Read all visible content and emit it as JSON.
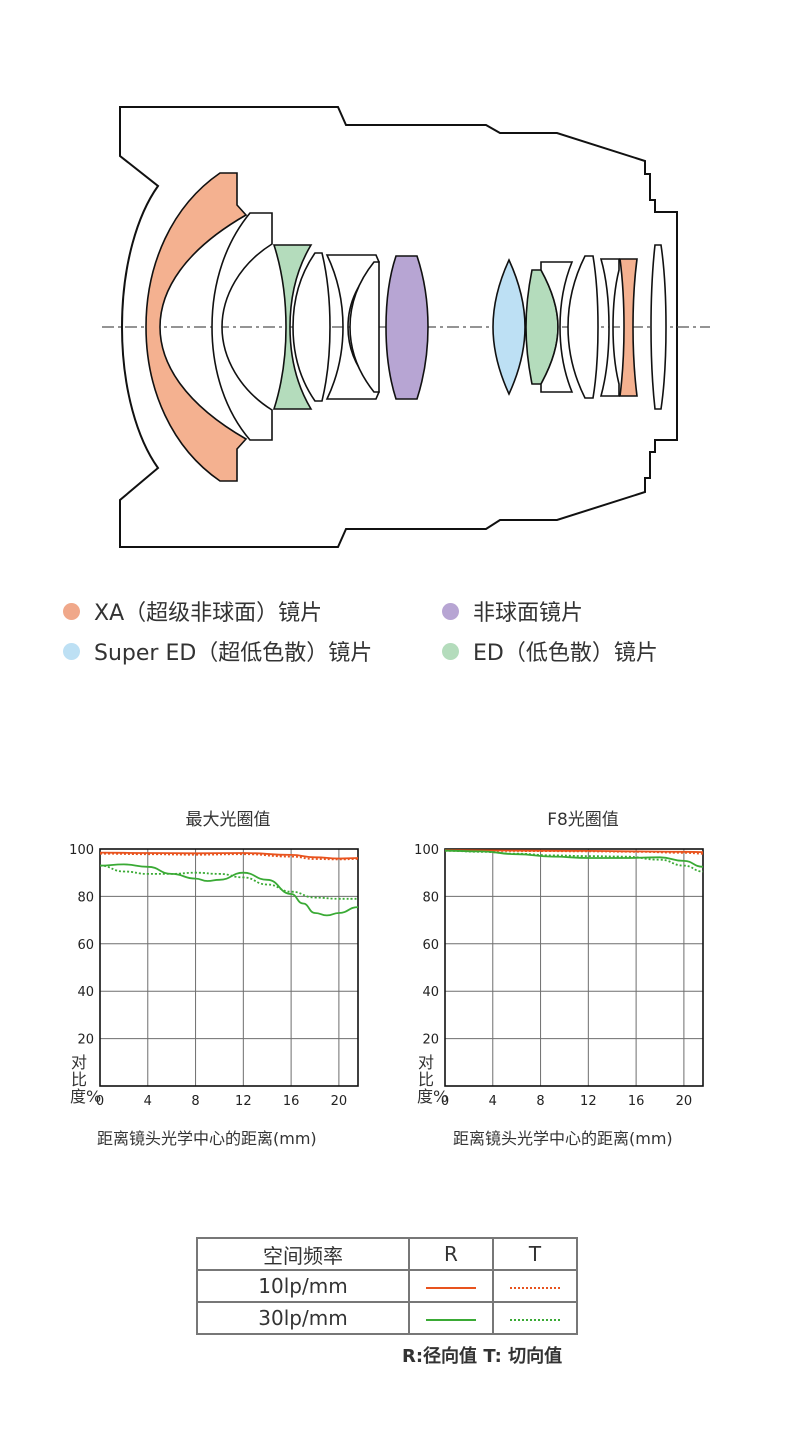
{
  "legend": {
    "items": [
      {
        "label": "XA（超级非球面）镜片",
        "color": "#f0a88a"
      },
      {
        "label": "非球面镜片",
        "color": "#b7a5d3"
      },
      {
        "label": "Super ED（超低色散）镜片",
        "color": "#bde0f4"
      },
      {
        "label": "ED（低色散）镜片",
        "color": "#b4dcbc"
      }
    ]
  },
  "chart_data": [
    {
      "type": "line",
      "title": "最大光圈值",
      "xlabel": "距离镜头光学中心的距离(mm)",
      "ylabel": "对比度%",
      "xlim": [
        0,
        21.6
      ],
      "ylim": [
        0,
        100
      ],
      "xticks": [
        "0",
        "4",
        "8",
        "12",
        "16",
        "20"
      ],
      "yticks": [
        "100",
        "80",
        "60",
        "40",
        "20"
      ],
      "grid": true,
      "series": [
        {
          "name": "10lp/mm R",
          "color": "#e8531e",
          "style": "solid",
          "x": [
            0,
            4,
            8,
            12,
            16,
            18,
            20,
            21.6
          ],
          "y": [
            98.5,
            98.3,
            98.2,
            98.3,
            97.5,
            96.5,
            96.0,
            96.2
          ]
        },
        {
          "name": "10lp/mm T",
          "color": "#e8531e",
          "style": "dotted",
          "x": [
            0,
            4,
            8,
            12,
            16,
            18,
            20,
            21.6
          ],
          "y": [
            98.0,
            97.8,
            97.6,
            97.8,
            96.8,
            95.8,
            95.6,
            95.8
          ]
        },
        {
          "name": "30lp/mm R",
          "color": "#3aaa35",
          "style": "solid",
          "x": [
            0,
            2,
            4,
            6,
            8,
            9,
            10,
            12,
            14,
            16,
            17,
            18,
            19,
            20,
            21.6
          ],
          "y": [
            93,
            93.5,
            92.5,
            89.5,
            87.5,
            86.5,
            87,
            90,
            87,
            81,
            77,
            73,
            72,
            73,
            75.5
          ]
        },
        {
          "name": "30lp/mm T",
          "color": "#3aaa35",
          "style": "dotted",
          "x": [
            0,
            2,
            4,
            6,
            8,
            10,
            12,
            14,
            16,
            18,
            20,
            21.6
          ],
          "y": [
            93,
            90.5,
            89.5,
            89.5,
            90,
            89.5,
            88,
            85,
            82,
            79.5,
            79,
            79
          ]
        }
      ]
    },
    {
      "type": "line",
      "title": "F8光圈值",
      "xlabel": "距离镜头光学中心的距离(mm)",
      "ylabel": "对比度%",
      "xlim": [
        0,
        21.6
      ],
      "ylim": [
        0,
        100
      ],
      "xticks": [
        "0",
        "4",
        "8",
        "12",
        "16",
        "20"
      ],
      "yticks": [
        "100",
        "80",
        "60",
        "40",
        "20"
      ],
      "grid": true,
      "series": [
        {
          "name": "10lp/mm R",
          "color": "#e8531e",
          "style": "solid",
          "x": [
            0,
            4,
            8,
            12,
            16,
            20,
            21.6
          ],
          "y": [
            99.5,
            99.4,
            99.3,
            99.2,
            99.0,
            98.8,
            98.7
          ]
        },
        {
          "name": "10lp/mm T",
          "color": "#e8531e",
          "style": "dotted",
          "x": [
            0,
            4,
            8,
            12,
            16,
            20,
            21.6
          ],
          "y": [
            99.3,
            99.2,
            99.1,
            99.0,
            98.8,
            98.4,
            98.0
          ]
        },
        {
          "name": "30lp/mm R",
          "color": "#3aaa35",
          "style": "solid",
          "x": [
            0,
            3,
            6,
            9,
            12,
            15,
            18,
            20,
            21.6
          ],
          "y": [
            99.3,
            99,
            97.8,
            96.8,
            96.2,
            96.2,
            96.5,
            95,
            92.5
          ]
        },
        {
          "name": "30lp/mm T",
          "color": "#3aaa35",
          "style": "dotted",
          "x": [
            0,
            3,
            6,
            9,
            12,
            15,
            18,
            20,
            21.6
          ],
          "y": [
            99.3,
            98.8,
            98,
            97.3,
            97,
            96.8,
            95.5,
            93,
            90.5
          ]
        }
      ]
    }
  ],
  "freq_table": {
    "headers": [
      "空间频率",
      "R",
      "T"
    ],
    "rows": [
      {
        "label": "10lp/mm",
        "color": "#e8531e"
      },
      {
        "label": "30lp/mm",
        "color": "#3aaa35"
      }
    ]
  },
  "note": "R:径向值 T:  切向值"
}
